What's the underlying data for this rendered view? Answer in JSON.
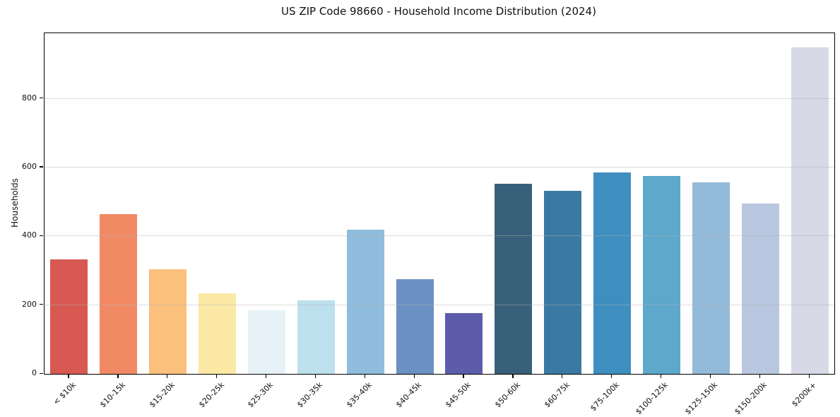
{
  "chart_data": {
    "type": "bar",
    "title": "US ZIP Code 98660 - Household Income Distribution (2024)",
    "xlabel": "",
    "ylabel": "Households",
    "categories": [
      "< $10k",
      "$10-15k",
      "$15-20k",
      "$20-25k",
      "$25-30k",
      "$30-35k",
      "$35-40k",
      "$40-45k",
      "$45-50k",
      "$50-60k",
      "$60-75k",
      "$75-100k",
      "$100-125k",
      "$125-150k",
      "$150-200k",
      "$200k+"
    ],
    "values": [
      333,
      465,
      304,
      235,
      184,
      214,
      419,
      275,
      176,
      552,
      533,
      585,
      575,
      557,
      495,
      948
    ],
    "bar_colors": [
      "#d75951",
      "#f18a64",
      "#fac07c",
      "#fce9a6",
      "#e6f2f7",
      "#bce0ed",
      "#90bddd",
      "#6a91c2",
      "#5c5cab",
      "#38607a",
      "#3a7aa2",
      "#3e8ec0",
      "#5ea8cc",
      "#94bad9",
      "#b9c7e0",
      "#d7d9e6"
    ],
    "yticks": [
      0,
      200,
      400,
      600,
      800
    ],
    "ylim": [
      0,
      990
    ],
    "grid": "horizontal",
    "grid_above_bars": true,
    "grid_color_rgba": "rgba(178,178,178,0.45)",
    "legend_position": "none",
    "background_color": "#ffffff",
    "axis_color": "#000000",
    "text_color": "#111111"
  }
}
